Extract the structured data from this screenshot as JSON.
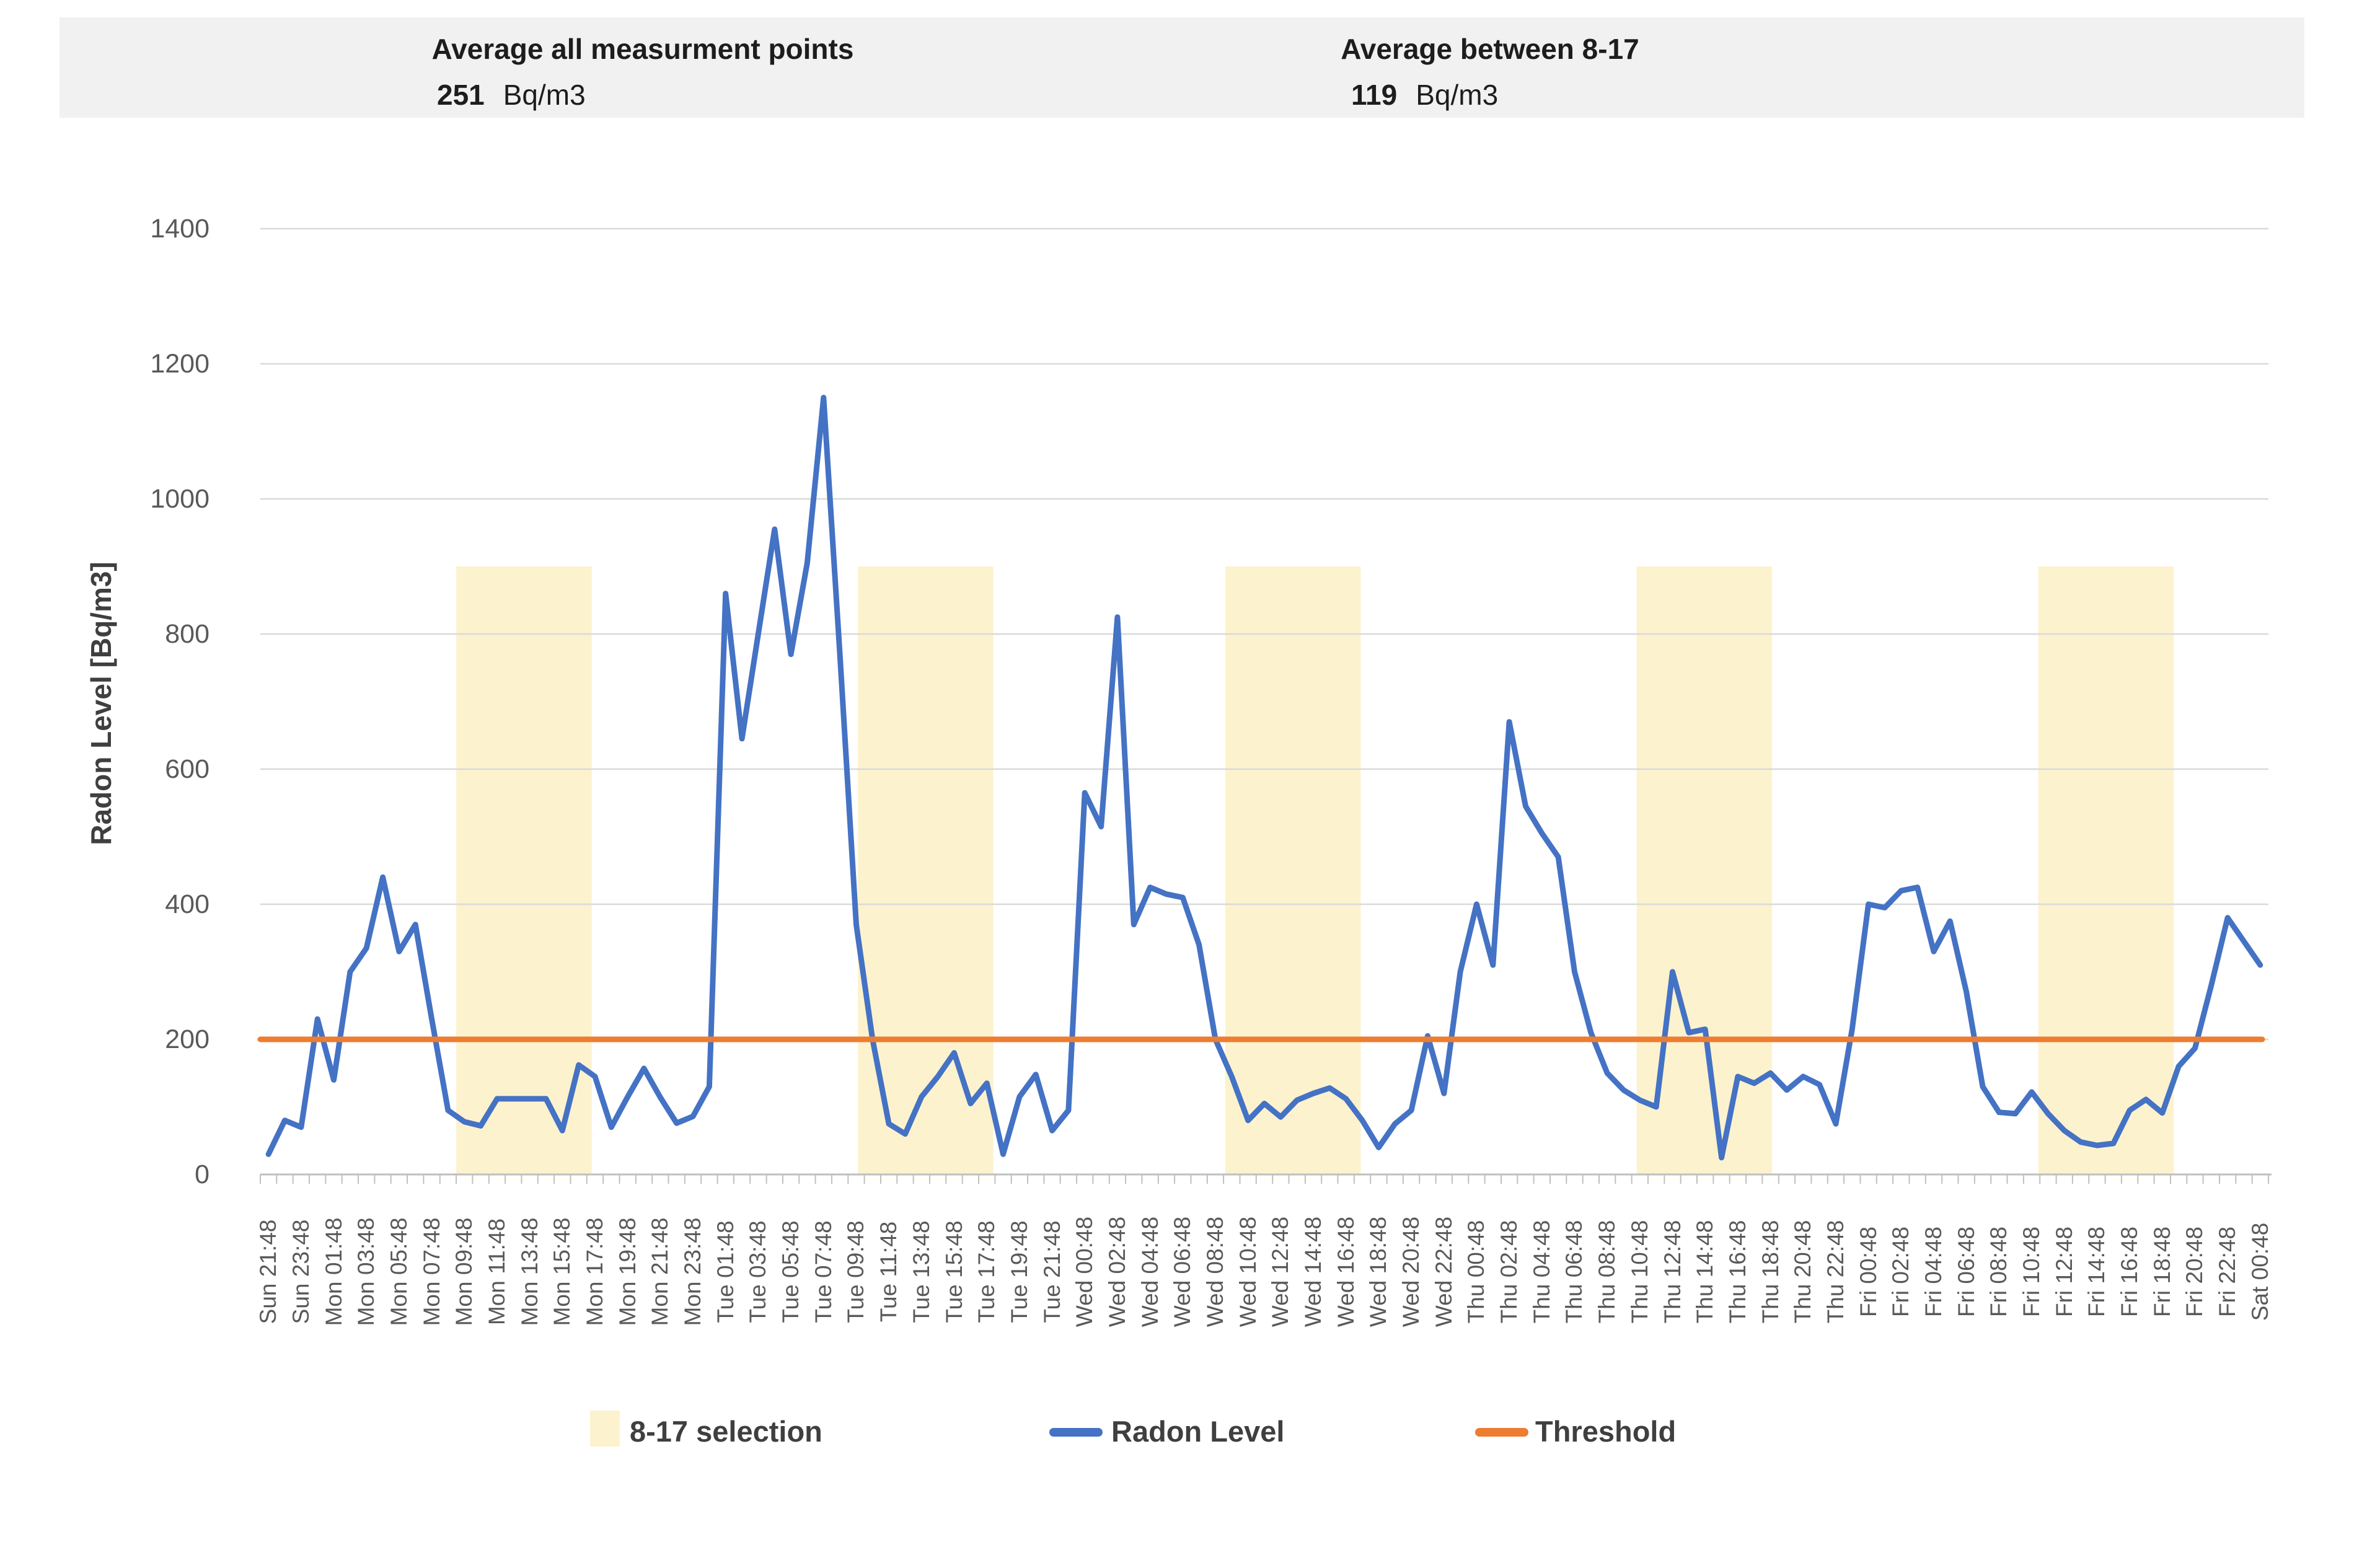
{
  "header": {
    "left": {
      "title": "Average all measurment points",
      "value": "251",
      "unit": "Bq/m3"
    },
    "right": {
      "title": "Average between 8-17",
      "value": "119",
      "unit": "Bq/m3"
    }
  },
  "legend": {
    "selection_label": "8-17 selection",
    "radon_label": "Radon Level",
    "threshold_label": "Threshold"
  },
  "chart_data": {
    "type": "line",
    "title": "",
    "xlabel": "",
    "ylabel": "Radon Level [Bq/m3]",
    "ylim": [
      0,
      1400
    ],
    "y_ticks": [
      0,
      200,
      400,
      600,
      800,
      1000,
      1200,
      1400
    ],
    "grid": true,
    "legend_position": "bottom",
    "label_every": 2,
    "x_labels": [
      "Sun 21:48",
      "Sun 23:48",
      "Mon 01:48",
      "Mon 03:48",
      "Mon 05:48",
      "Mon 07:48",
      "Mon 09:48",
      "Mon 11:48",
      "Mon 13:48",
      "Mon 15:48",
      "Mon 17:48",
      "Mon 19:48",
      "Mon 21:48",
      "Mon 23:48",
      "Tue 01:48",
      "Tue 03:48",
      "Tue 05:48",
      "Tue 07:48",
      "Tue 09:48",
      "Tue 11:48",
      "Tue 13:48",
      "Tue 15:48",
      "Tue 17:48",
      "Tue 19:48",
      "Tue 21:48",
      "Wed 00:48",
      "Wed 02:48",
      "Wed 04:48",
      "Wed 06:48",
      "Wed 08:48",
      "Wed 10:48",
      "Wed 12:48",
      "Wed 14:48",
      "Wed 16:48",
      "Wed 18:48",
      "Wed 20:48",
      "Wed 22:48",
      "Thu 00:48",
      "Thu 02:48",
      "Thu 04:48",
      "Thu 06:48",
      "Thu 08:48",
      "Thu 10:48",
      "Thu 12:48",
      "Thu 14:48",
      "Thu 16:48",
      "Thu 18:48",
      "Thu 20:48",
      "Thu 22:48",
      "Fri 00:48",
      "Fri 02:48",
      "Fri 04:48",
      "Fri 06:48",
      "Fri 08:48",
      "Fri 10:48",
      "Fri 12:48",
      "Fri 14:48",
      "Fri 16:48",
      "Fri 18:48",
      "Fri 20:48",
      "Fri 22:48",
      "Sat 00:48"
    ],
    "series": [
      {
        "name": "Radon Level",
        "color": "#4472C4",
        "values": [
          30,
          80,
          70,
          230,
          140,
          300,
          335,
          440,
          330,
          370,
          230,
          95,
          78,
          72,
          112,
          112,
          112,
          112,
          65,
          162,
          145,
          70,
          115,
          157,
          114,
          76,
          86,
          130,
          860,
          645,
          800,
          955,
          770,
          905,
          1150,
          770,
          370,
          200,
          75,
          60,
          115,
          145,
          180,
          105,
          135,
          30,
          115,
          148,
          65,
          95,
          565,
          515,
          825,
          370,
          425,
          415,
          410,
          340,
          200,
          145,
          80,
          105,
          85,
          110,
          120,
          128,
          112,
          80,
          40,
          75,
          95,
          205,
          120,
          300,
          400,
          310,
          670,
          545,
          505,
          470,
          300,
          210,
          150,
          125,
          110,
          100,
          300,
          210,
          215,
          25,
          145,
          135,
          150,
          125,
          145,
          133,
          75,
          215,
          400,
          395,
          420,
          425,
          330,
          375,
          270,
          130,
          92,
          90,
          122,
          90,
          65,
          48,
          43,
          46,
          95,
          111,
          91,
          160,
          187,
          280,
          380,
          345,
          310
        ]
      },
      {
        "name": "Threshold",
        "color": "#ED7D31",
        "value": 200
      }
    ],
    "selection": {
      "name": "8-17 selection",
      "color": "#FDF2CE",
      "value_top": 900,
      "ranges": [
        [
          12.0,
          20.3
        ],
        [
          36.6,
          44.9
        ],
        [
          59.1,
          67.4
        ],
        [
          84.3,
          92.6
        ],
        [
          108.9,
          117.2
        ]
      ]
    }
  }
}
